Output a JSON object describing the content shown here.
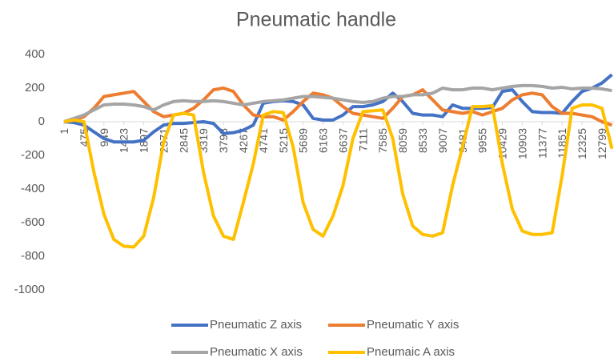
{
  "chart_data": {
    "type": "line",
    "title": "Pneumatic handle",
    "x": [
      1,
      238,
      475,
      712,
      949,
      1186,
      1423,
      1660,
      1897,
      2134,
      2371,
      2608,
      2845,
      3082,
      3319,
      3556,
      3793,
      4030,
      4267,
      4504,
      4741,
      4978,
      5215,
      5452,
      5689,
      5926,
      6163,
      6400,
      6637,
      6874,
      7111,
      7348,
      7585,
      7822,
      8059,
      8296,
      8533,
      8770,
      9007,
      9244,
      9481,
      9718,
      9955,
      10192,
      10429,
      10666,
      10903,
      11140,
      11377,
      11614,
      11851,
      12088,
      12325,
      12562,
      12799,
      13036
    ],
    "xlim": [
      1,
      13085
    ],
    "xticks": [
      1,
      475,
      949,
      1423,
      1897,
      2371,
      2845,
      3319,
      3793,
      4267,
      4741,
      5215,
      5689,
      6163,
      6637,
      7111,
      7585,
      8059,
      8533,
      9007,
      9481,
      9955,
      10429,
      10903,
      11377,
      11851,
      12325,
      12799
    ],
    "ylim": [
      -1000,
      400
    ],
    "yticks": [
      -1000,
      -800,
      -600,
      -400,
      -200,
      0,
      200,
      400
    ],
    "legend": "bottom",
    "series": [
      {
        "name": "Pneumatic Z axis",
        "color": "#4472c4",
        "values": [
          0,
          -5,
          -20,
          -60,
          -100,
          -120,
          -120,
          -120,
          -110,
          -60,
          -20,
          -10,
          -10,
          -5,
          0,
          -10,
          -70,
          -65,
          -50,
          -20,
          110,
          120,
          125,
          120,
          100,
          20,
          10,
          10,
          40,
          90,
          90,
          100,
          120,
          170,
          120,
          50,
          40,
          40,
          30,
          100,
          80,
          80,
          80,
          85,
          180,
          190,
          120,
          60,
          55,
          55,
          50,
          120,
          180,
          200,
          230,
          280
        ]
      },
      {
        "name": "Pneumatic Y axis",
        "color": "#ed7d31",
        "values": [
          0,
          10,
          30,
          80,
          150,
          160,
          170,
          180,
          120,
          60,
          30,
          40,
          50,
          80,
          130,
          190,
          200,
          180,
          100,
          40,
          30,
          30,
          10,
          60,
          120,
          170,
          160,
          140,
          90,
          50,
          40,
          30,
          20,
          80,
          150,
          160,
          190,
          130,
          70,
          60,
          50,
          60,
          40,
          60,
          80,
          130,
          160,
          170,
          160,
          90,
          50,
          50,
          40,
          30,
          0,
          -20
        ]
      },
      {
        "name": "Pneumatic X axis",
        "color": "#a5a5a5",
        "values": [
          0,
          20,
          40,
          70,
          100,
          105,
          105,
          100,
          90,
          70,
          100,
          120,
          125,
          120,
          120,
          125,
          120,
          110,
          100,
          110,
          120,
          125,
          130,
          140,
          150,
          150,
          145,
          140,
          130,
          120,
          115,
          120,
          140,
          150,
          150,
          160,
          160,
          170,
          200,
          190,
          190,
          200,
          200,
          190,
          200,
          210,
          215,
          215,
          210,
          200,
          205,
          195,
          200,
          200,
          195,
          185
        ]
      },
      {
        "name": "Pneumaic A axis",
        "color": "#ffc000",
        "values": [
          0,
          10,
          0,
          -300,
          -550,
          -700,
          -740,
          -745,
          -680,
          -450,
          -120,
          40,
          50,
          40,
          -300,
          -560,
          -680,
          -700,
          -480,
          -250,
          40,
          60,
          55,
          -150,
          -480,
          -640,
          -680,
          -560,
          -380,
          -100,
          60,
          65,
          70,
          -100,
          -430,
          -620,
          -670,
          -680,
          -660,
          -380,
          -150,
          90,
          90,
          95,
          -250,
          -520,
          -650,
          -670,
          -670,
          -660,
          -320,
          80,
          100,
          100,
          80,
          -160
        ]
      }
    ]
  }
}
